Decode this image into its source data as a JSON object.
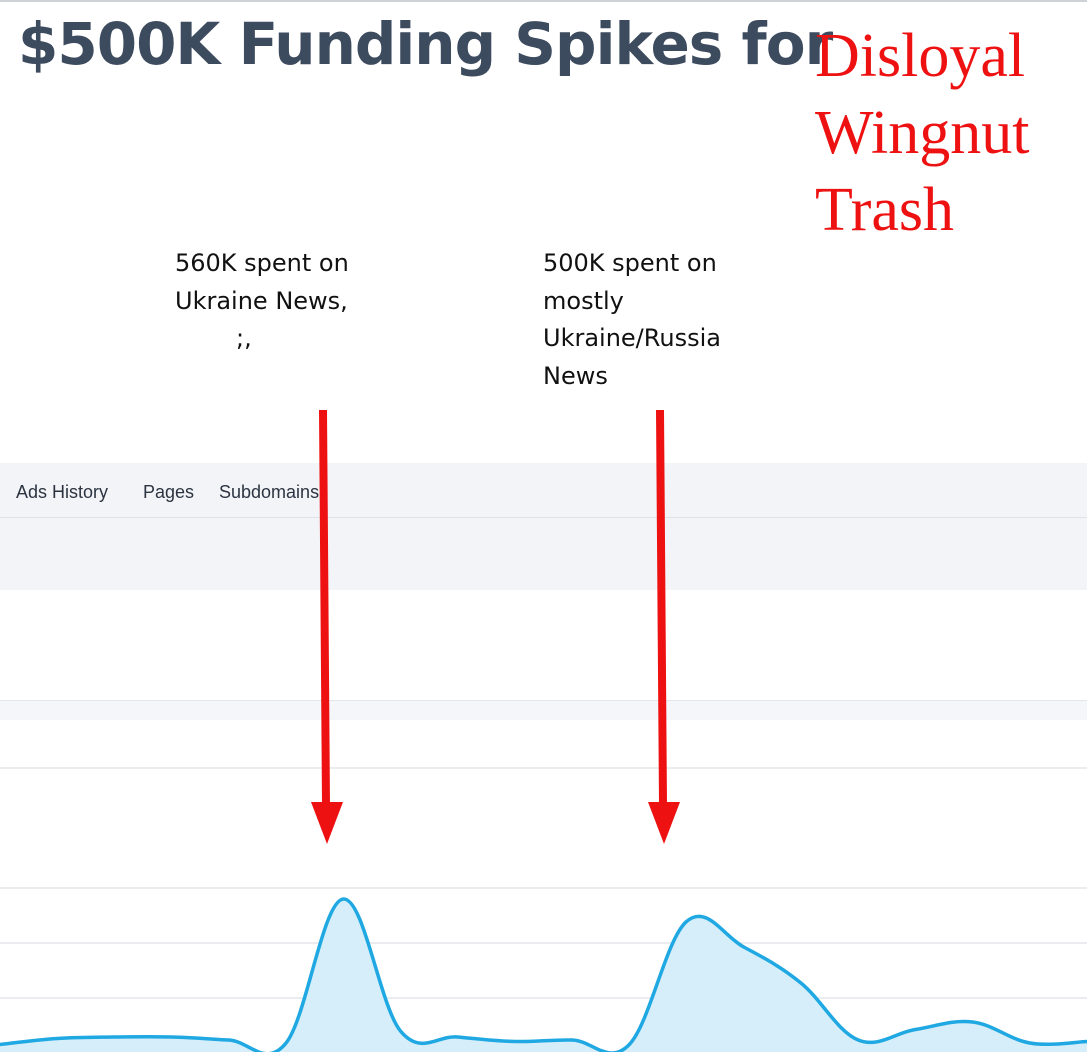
{
  "title": "$500K Funding Spikes for",
  "overlay_lines": [
    "Disloyal",
    "Wingnut",
    "Trash"
  ],
  "annotations": {
    "left": [
      "560K spent on",
      "Ukraine News,",
      "        ;,"
    ],
    "right": [
      "500K spent on",
      "mostly",
      "Ukraine/Russia",
      "News"
    ]
  },
  "tabs": [
    "Ads History",
    "Pages",
    "Subdomains"
  ],
  "colors": {
    "line": "#1fa8e2",
    "fill": "#d5eefa",
    "arrow": "#ee1111",
    "title": "#3d4b5e"
  },
  "chart_data": {
    "type": "area",
    "title": "",
    "xlabel": "",
    "ylabel": "",
    "grid": true,
    "series": [
      {
        "values": [
          3,
          7,
          8,
          8,
          6,
          4,
          100,
          12,
          8,
          5,
          6,
          3,
          85,
          68,
          44,
          6,
          13,
          18,
          4,
          5
        ]
      }
    ]
  }
}
